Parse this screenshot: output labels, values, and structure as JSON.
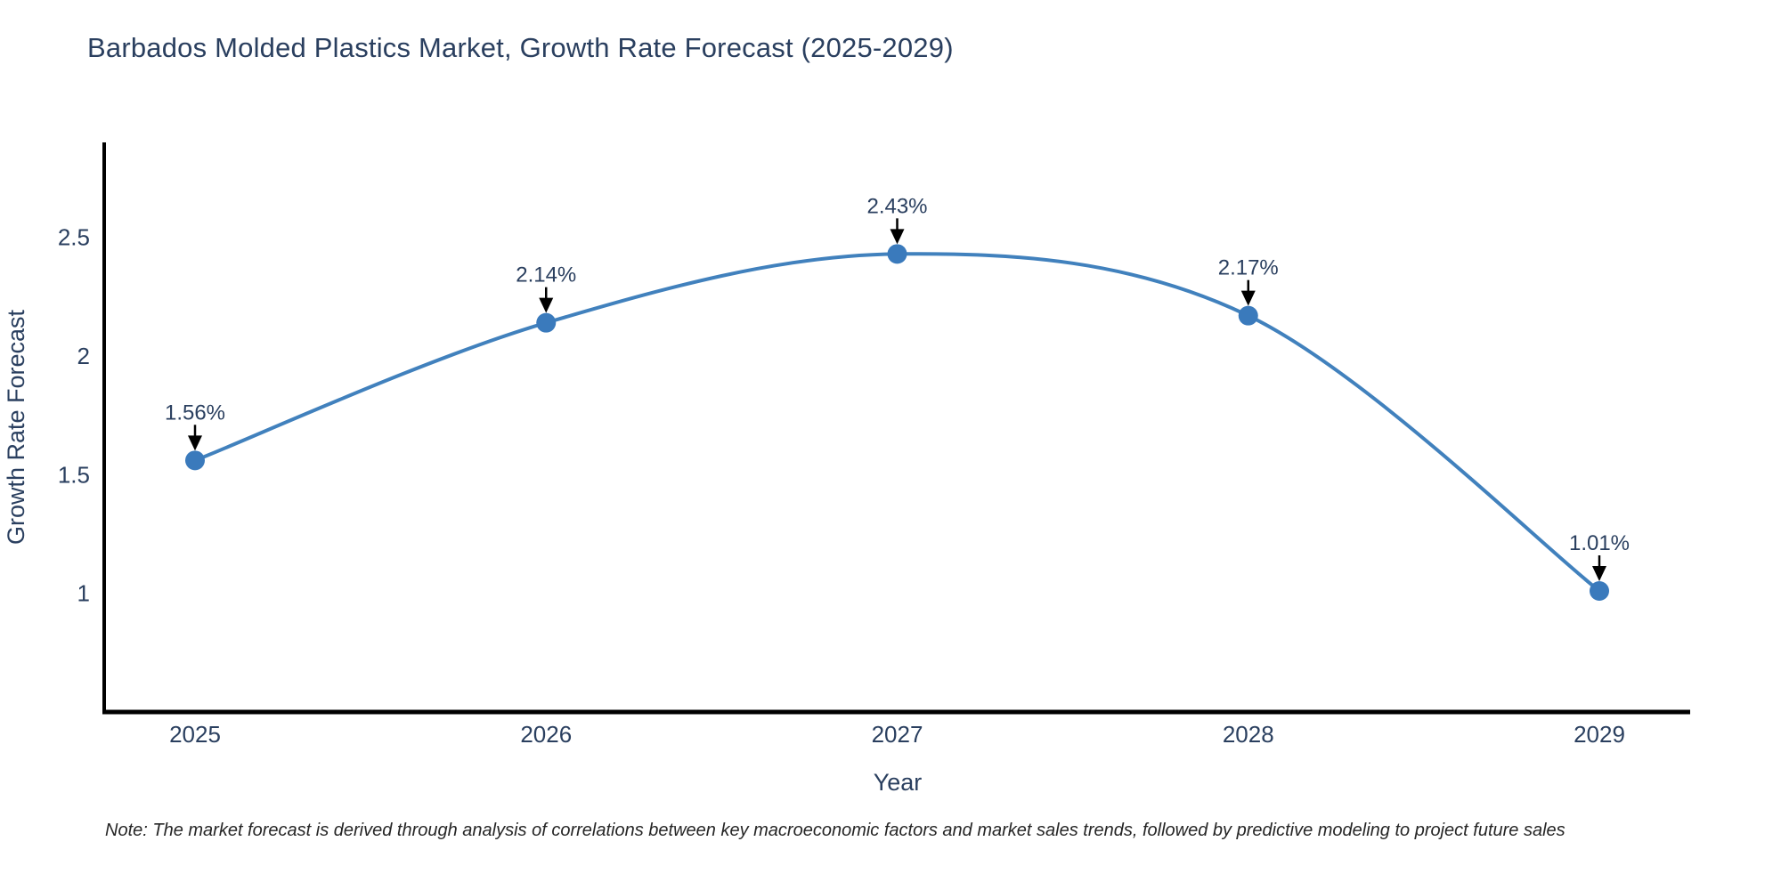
{
  "title": "Barbados Molded Plastics Market, Growth Rate Forecast (2025-2029)",
  "note": "Note: The market forecast is derived through analysis of correlations between key macroeconomic factors and market sales trends, followed by predictive modeling to project future sales",
  "chart_data": {
    "type": "line",
    "title": "Barbados Molded Plastics Market, Growth Rate Forecast (2025-2029)",
    "xlabel": "Year",
    "ylabel": "Growth Rate Forecast",
    "x": [
      2025,
      2026,
      2027,
      2028,
      2029
    ],
    "series": [
      {
        "name": "Growth Rate Forecast",
        "values": [
          1.56,
          2.14,
          2.43,
          2.17,
          1.01
        ]
      }
    ],
    "point_labels": [
      "1.56%",
      "2.14%",
      "2.43%",
      "2.17%",
      "1.01%"
    ],
    "line_shape": "spline",
    "grid": false,
    "legend": "none",
    "ylim": [
      0.5,
      2.9
    ],
    "yticks": [
      {
        "label": "1",
        "value": 1.0
      },
      {
        "label": "1.5",
        "value": 1.5
      },
      {
        "label": "2",
        "value": 2.0
      },
      {
        "label": "2.5",
        "value": 2.5
      }
    ],
    "colors": {
      "line": "#4181bd",
      "marker": "#3a7abc",
      "axis": "#000000",
      "text": "#2a3f5f",
      "annotation_arrow": "#000000",
      "note_text": "#262626"
    }
  }
}
